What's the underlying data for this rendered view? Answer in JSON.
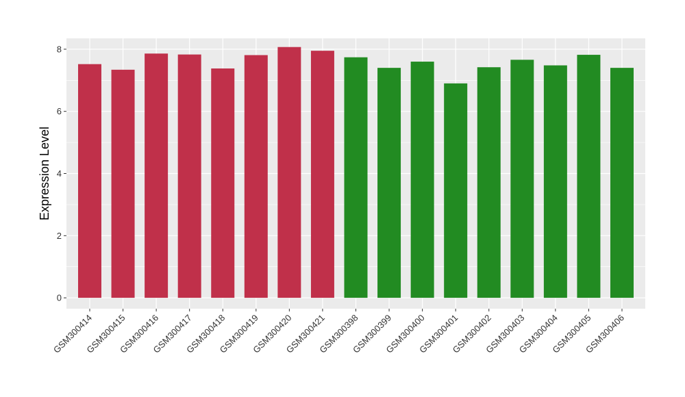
{
  "chart_data": {
    "type": "bar",
    "title": "",
    "xlabel": "",
    "ylabel": "Expression Level",
    "ylim": [
      -0.35,
      8.35
    ],
    "yticks": [
      0,
      2,
      4,
      6,
      8
    ],
    "grid": true,
    "legend": "none",
    "categories": [
      "GSM300414",
      "GSM300415",
      "GSM300416",
      "GSM300417",
      "GSM300418",
      "GSM300419",
      "GSM300420",
      "GSM300421",
      "GSM300398",
      "GSM300399",
      "GSM300400",
      "GSM300401",
      "GSM300402",
      "GSM300403",
      "GSM300404",
      "GSM300405",
      "GSM300406"
    ],
    "values": [
      7.52,
      7.34,
      7.86,
      7.83,
      7.38,
      7.81,
      8.07,
      7.95,
      7.74,
      7.4,
      7.6,
      6.9,
      7.42,
      7.66,
      7.48,
      7.82,
      7.4
    ],
    "colors": [
      "#c0304a",
      "#c0304a",
      "#c0304a",
      "#c0304a",
      "#c0304a",
      "#c0304a",
      "#c0304a",
      "#c0304a",
      "#228b22",
      "#228b22",
      "#228b22",
      "#228b22",
      "#228b22",
      "#228b22",
      "#228b22",
      "#228b22",
      "#228b22"
    ],
    "panel_background": "#ebebeb",
    "grid_color": "#ffffff"
  }
}
